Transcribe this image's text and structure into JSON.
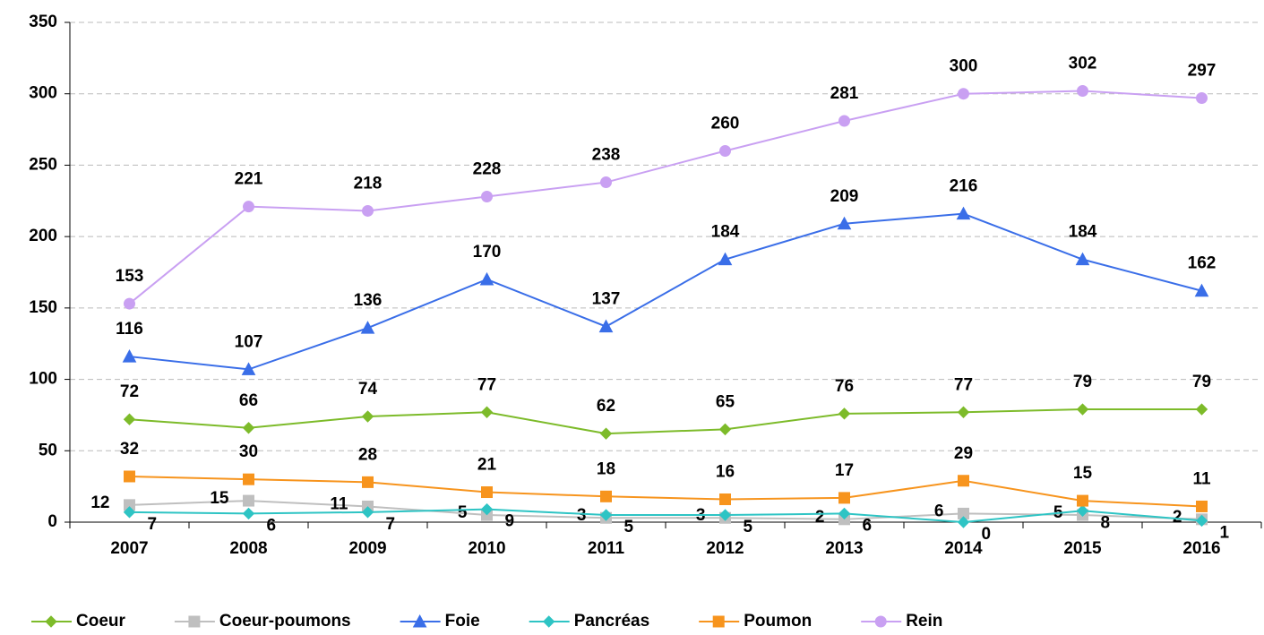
{
  "chart_data": {
    "type": "line",
    "categories": [
      "2007",
      "2008",
      "2009",
      "2010",
      "2011",
      "2012",
      "2013",
      "2014",
      "2015",
      "2016"
    ],
    "series": [
      {
        "name": "Coeur",
        "color": "#7dbb2a",
        "marker": "diamond",
        "values": [
          72,
          66,
          74,
          77,
          62,
          65,
          76,
          77,
          79,
          79
        ]
      },
      {
        "name": "Coeur-poumons",
        "color": "#bfbfbf",
        "marker": "square",
        "values": [
          12,
          15,
          11,
          5,
          3,
          3,
          2,
          6,
          5,
          2
        ]
      },
      {
        "name": "Foie",
        "color": "#3a6ee8",
        "marker": "triangle",
        "values": [
          116,
          107,
          136,
          170,
          137,
          184,
          209,
          216,
          184,
          162
        ]
      },
      {
        "name": "Pancréas",
        "color": "#2ec4c4",
        "marker": "diamond",
        "values": [
          7,
          6,
          7,
          9,
          5,
          5,
          6,
          0,
          8,
          1
        ]
      },
      {
        "name": "Poumon",
        "color": "#f7941d",
        "marker": "square",
        "values": [
          32,
          30,
          28,
          21,
          18,
          16,
          17,
          29,
          15,
          11
        ]
      },
      {
        "name": "Rein",
        "color": "#c9a0f2",
        "marker": "circle",
        "values": [
          153,
          221,
          218,
          228,
          238,
          260,
          281,
          300,
          302,
          297
        ]
      }
    ],
    "ylim": [
      0,
      350
    ],
    "yticks": [
      0,
      50,
      100,
      150,
      200,
      250,
      300,
      350
    ],
    "grid": true,
    "legend": "bottom"
  }
}
